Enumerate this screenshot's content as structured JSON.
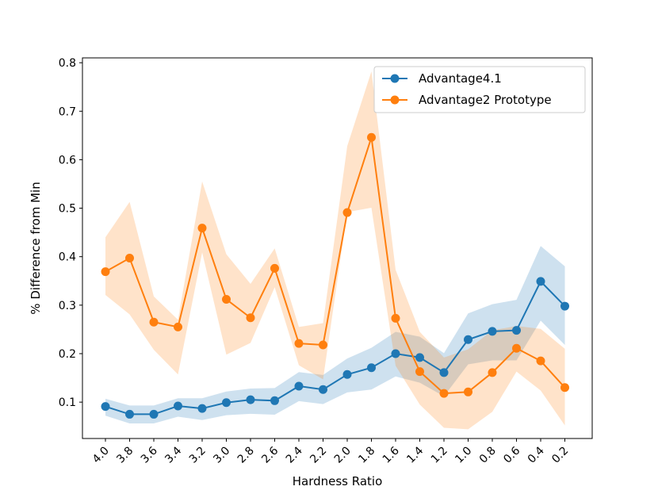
{
  "chart_data": {
    "type": "line",
    "title": "",
    "xlabel": "Hardness Ratio",
    "ylabel": "% Difference from Min",
    "categories": [
      "4.0",
      "3.8",
      "3.6",
      "3.4",
      "3.2",
      "3.0",
      "2.8",
      "2.6",
      "2.4",
      "2.2",
      "2.0",
      "1.8",
      "1.6",
      "1.4",
      "1.2",
      "1.0",
      "0.8",
      "0.6",
      "0.4",
      "0.2"
    ],
    "ylim": [
      0.025,
      0.81
    ],
    "yticks": [
      0.1,
      0.2,
      0.3,
      0.4,
      0.5,
      0.6,
      0.7,
      0.8
    ],
    "ytick_labels": [
      "0.1",
      "0.2",
      "0.3",
      "0.4",
      "0.5",
      "0.6",
      "0.7",
      "0.8"
    ],
    "legend_position": "top-right",
    "series": [
      {
        "name": "Advantage4.1",
        "color": "#1f77b4",
        "values": [
          0.091,
          0.075,
          0.075,
          0.092,
          0.087,
          0.099,
          0.105,
          0.103,
          0.133,
          0.126,
          0.157,
          0.171,
          0.2,
          0.192,
          0.161,
          0.229,
          0.246,
          0.248,
          0.349,
          0.298
        ],
        "lower": [
          0.072,
          0.056,
          0.056,
          0.07,
          0.063,
          0.073,
          0.076,
          0.074,
          0.102,
          0.096,
          0.12,
          0.126,
          0.153,
          0.14,
          0.112,
          0.178,
          0.186,
          0.186,
          0.268,
          0.218
        ],
        "upper": [
          0.107,
          0.093,
          0.093,
          0.108,
          0.108,
          0.122,
          0.128,
          0.129,
          0.162,
          0.156,
          0.19,
          0.212,
          0.245,
          0.235,
          0.201,
          0.283,
          0.302,
          0.311,
          0.422,
          0.38
        ]
      },
      {
        "name": "Advantage2 Prototype",
        "color": "#ff7f0e",
        "values": [
          0.369,
          0.397,
          0.265,
          0.255,
          0.459,
          0.312,
          0.274,
          0.376,
          0.221,
          0.218,
          0.491,
          0.646,
          0.273,
          0.163,
          0.118,
          0.121,
          0.161,
          0.211,
          0.185,
          0.13
        ],
        "lower": [
          0.321,
          0.281,
          0.208,
          0.157,
          0.409,
          0.198,
          0.222,
          0.337,
          0.176,
          0.147,
          0.492,
          0.501,
          0.175,
          0.095,
          0.047,
          0.044,
          0.08,
          0.163,
          0.124,
          0.052
        ],
        "upper": [
          0.44,
          0.513,
          0.318,
          0.27,
          0.555,
          0.405,
          0.344,
          0.417,
          0.255,
          0.263,
          0.628,
          0.782,
          0.373,
          0.245,
          0.192,
          0.209,
          0.248,
          0.257,
          0.251,
          0.21
        ]
      }
    ]
  }
}
